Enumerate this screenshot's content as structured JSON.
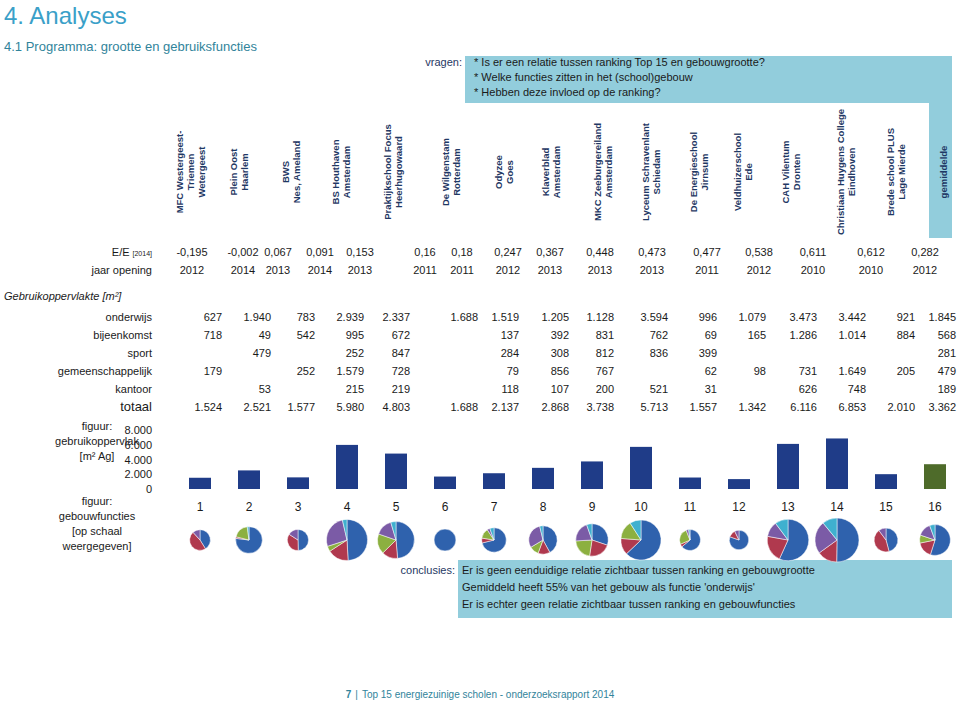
{
  "header": {
    "title": "4. Analyses",
    "subtitle": "4.1 Programma: grootte en gebruiksfuncties"
  },
  "questions": {
    "label": "vragen:",
    "lines": [
      "* Is er een relatie tussen ranking Top 15 en gebouwgrootte?",
      "* Welke functies zitten in het (school)gebouw",
      "* Hebben deze  invloed op de ranking?"
    ]
  },
  "table": {
    "columns": [
      [
        "MFC Westergeest-",
        "Triemen",
        "Wetergeest"
      ],
      [
        "Plein Oost",
        "Haarlem"
      ],
      [
        "BWS",
        "Nes, Ameland"
      ],
      [
        "BS Houthaven",
        "Amsterdam"
      ],
      [
        "Praktijkschool Focus",
        "Heerhugowaard"
      ],
      [
        "De Wilgenstam",
        "Rotterdam"
      ],
      [
        "Odyzee",
        "Goes"
      ],
      [
        "Klaverblad",
        "Amsterdam"
      ],
      [
        "MKC Zeeburgereiland",
        "Amsterdam"
      ],
      [
        "Lyceum Schravenlant",
        "Schiedam"
      ],
      [
        "De Energieschool",
        "Jirnsum"
      ],
      [
        "Veldhuizerschool",
        "Ede"
      ],
      [
        "CAH Vilentum",
        "Dronten"
      ],
      [
        "Christiaan Huygens College",
        "Eindhoven"
      ],
      [
        "Brede school PLUS",
        "Lage Mierde"
      ],
      [
        "gemiddelde"
      ]
    ],
    "top_rows": [
      {
        "label": "E/E",
        "label_sub": "[2014]",
        "cells": [
          "-0,195",
          "-0,002",
          "0,067",
          "0,091",
          "0,153",
          "0,16",
          "0,18",
          "0,247",
          "0,367",
          "0,448",
          "0,473",
          "0,477",
          "0,538",
          "0,611",
          "0,612",
          "0,282"
        ]
      },
      {
        "label": "jaar opening",
        "cells": [
          "2012",
          "2014",
          "2013",
          "2014",
          "2013",
          "2011",
          "2011",
          "2012",
          "2013",
          "2013",
          "2013",
          "2011",
          "2012",
          "2010",
          "2010",
          "2012"
        ]
      }
    ],
    "section": "Gebruikoppervlakte [m²]",
    "rows": [
      {
        "label": "onderwijs",
        "cells": [
          "627",
          "1.940",
          "783",
          "2.939",
          "2.337",
          "1.688",
          "1.519",
          "1.205",
          "1.128",
          "3.594",
          "996",
          "1.079",
          "3.473",
          "3.442",
          "921",
          "1.845"
        ]
      },
      {
        "label": "bijeenkomst",
        "cells": [
          "718",
          "49",
          "542",
          "995",
          "672",
          null,
          "137",
          "392",
          "831",
          "762",
          "69",
          "165",
          "1.286",
          "1.014",
          "884",
          "568"
        ]
      },
      {
        "label": "sport",
        "cells": [
          null,
          "479",
          null,
          "252",
          "847",
          null,
          "284",
          "308",
          "812",
          "836",
          "399",
          null,
          null,
          null,
          null,
          "281"
        ]
      },
      {
        "label": "gemeenschappelijk",
        "cells": [
          "179",
          null,
          "252",
          "1.579",
          "728",
          null,
          "79",
          "856",
          "767",
          null,
          "62",
          "98",
          "731",
          "1.649",
          "205",
          "479"
        ]
      },
      {
        "label": "kantoor",
        "cells": [
          null,
          "53",
          null,
          "215",
          "219",
          null,
          "118",
          "107",
          "200",
          "521",
          "31",
          null,
          "626",
          "748",
          null,
          "189"
        ]
      },
      {
        "label": "totaal",
        "cells": [
          "1.524",
          "2.521",
          "1.577",
          "5.980",
          "4.803",
          "1.688",
          "2.137",
          "2.868",
          "3.738",
          "5.713",
          "1.557",
          "1.342",
          "6.116",
          "6.853",
          "2.010",
          "3.362"
        ]
      }
    ]
  },
  "chart_data": [
    {
      "type": "bar",
      "title": [
        "figuur:",
        "gebruikoppervlak",
        "[m² Ag]"
      ],
      "categories": [
        "1",
        "2",
        "3",
        "4",
        "5",
        "6",
        "7",
        "8",
        "9",
        "10",
        "11",
        "12",
        "13",
        "14",
        "15",
        "16"
      ],
      "values": [
        1524,
        2521,
        1577,
        5980,
        4803,
        1688,
        2137,
        2868,
        3738,
        5713,
        1557,
        1342,
        6116,
        6853,
        2010,
        3362
      ],
      "colors": [
        "#1f3c88",
        "#1f3c88",
        "#1f3c88",
        "#1f3c88",
        "#1f3c88",
        "#1f3c88",
        "#1f3c88",
        "#1f3c88",
        "#1f3c88",
        "#1f3c88",
        "#1f3c88",
        "#1f3c88",
        "#1f3c88",
        "#1f3c88",
        "#1f3c88",
        "#4e6b2a"
      ],
      "ylim": [
        0,
        8000
      ],
      "yticks": [
        0,
        {
          "value": 2000,
          "label": "2.000"
        },
        {
          "value": 4000,
          "label": "4.000"
        },
        {
          "value": 6000,
          "label": "6.000"
        },
        {
          "value": 8000,
          "label": "8.000"
        }
      ],
      "grid": false
    },
    {
      "type": "pie",
      "title": [
        "figuur:",
        "gebouwfuncties",
        "[op schaal",
        "weergegeven]"
      ],
      "series": [
        {
          "color": "#2f62ad",
          "values": [
            627,
            1940,
            783,
            2939,
            2337,
            1688,
            1519,
            1205,
            1128,
            3594,
            996,
            1079,
            3473,
            3442,
            921,
            1845
          ]
        },
        {
          "color": "#b0394e",
          "values": [
            718,
            49,
            542,
            995,
            672,
            null,
            137,
            392,
            831,
            762,
            69,
            165,
            1286,
            1014,
            884,
            568
          ]
        },
        {
          "color": "#8cb040",
          "values": [
            null,
            479,
            null,
            252,
            847,
            null,
            284,
            308,
            812,
            836,
            399,
            null,
            null,
            null,
            null,
            281
          ]
        },
        {
          "color": "#7b5ba6",
          "values": [
            179,
            null,
            252,
            1579,
            728,
            null,
            79,
            856,
            767,
            null,
            62,
            98,
            731,
            1649,
            205,
            479
          ]
        },
        {
          "color": "#3fb0cf",
          "values": [
            null,
            53,
            null,
            215,
            219,
            null,
            118,
            107,
            200,
            521,
            31,
            null,
            626,
            748,
            null,
            189
          ]
        }
      ]
    }
  ],
  "conclusions": {
    "label": "conclusies:",
    "lines": [
      "Er is geen eenduidige relatie zichtbaar tussen ranking en gebouwgrootte",
      "Gemiddeld heeft 55% van het gebouw als functie 'onderwijs'",
      "Er is echter geen relatie zichtbaar tussen ranking en gebouwfuncties"
    ]
  },
  "footer": {
    "page": "7",
    "separator": "|",
    "text": "Top 15 energiezuinige scholen - onderzoeksrapport 2014"
  }
}
